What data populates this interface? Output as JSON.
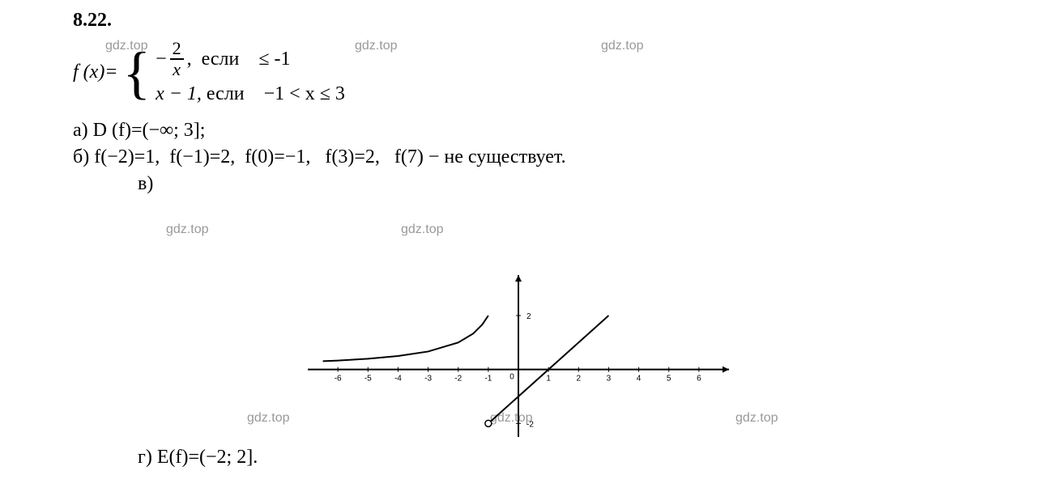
{
  "problem": {
    "number": "8.22.",
    "fx_label": "f (x)=",
    "piece1": {
      "prefix_minus": "−",
      "num": "2",
      "den": "x",
      "cond": ",  если    ≤ -1"
    },
    "piece2": {
      "expr": "x − 1,",
      "cond": "если    −1 < x ≤ 3"
    }
  },
  "parts": {
    "a": "а) D (f)=(−∞; 3];",
    "b": "б) f(−2)=1,  f(−1)=2,  f(0)=−1,   f(3)=2,   f(7) − не существует.",
    "v": "в)",
    "g": "г) E(f)=(−2; 2]."
  },
  "watermarks": {
    "w1": "gdz.top",
    "w2": "gdz.top",
    "w3": "gdz.top",
    "w4": "gdz.top",
    "w5": "gdz.top",
    "w6": "gdz.top",
    "w7": "gdz.top",
    "w8": "gdz.top"
  },
  "chart": {
    "type": "line",
    "xlim": [
      -7,
      7
    ],
    "ylim": [
      -2.5,
      3.5
    ],
    "xticks": [
      -6,
      -5,
      -4,
      -3,
      -2,
      -1,
      0,
      1,
      2,
      3,
      4,
      5,
      6
    ],
    "xtick_labels": [
      "-6",
      "-5",
      "-4",
      "-3",
      "-2",
      "-1",
      "0",
      "1",
      "2",
      "3",
      "4",
      "5",
      "6"
    ],
    "yticks": [
      -2,
      2
    ],
    "ytick_labels": [
      "-2",
      "2"
    ],
    "axis_color": "#000000",
    "axis_width": 2,
    "tick_fontsize": 10,
    "tick_color": "#000000",
    "background_color": "#ffffff",
    "series1": {
      "type": "curve_hyperbola",
      "points": [
        [
          -6.5,
          0.31
        ],
        [
          -6,
          0.333
        ],
        [
          -5,
          0.4
        ],
        [
          -4,
          0.5
        ],
        [
          -3,
          0.667
        ],
        [
          -2,
          1
        ],
        [
          -1.5,
          1.333
        ],
        [
          -1.2,
          1.667
        ],
        [
          -1,
          2
        ]
      ],
      "color": "#000000",
      "width": 2
    },
    "series2": {
      "type": "line_segment",
      "points": [
        [
          -1,
          -2
        ],
        [
          3,
          2
        ]
      ],
      "color": "#000000",
      "width": 2,
      "start_marker": "open-circle",
      "marker_color": "#000000",
      "marker_fill": "#ffffff",
      "marker_size": 4
    }
  }
}
